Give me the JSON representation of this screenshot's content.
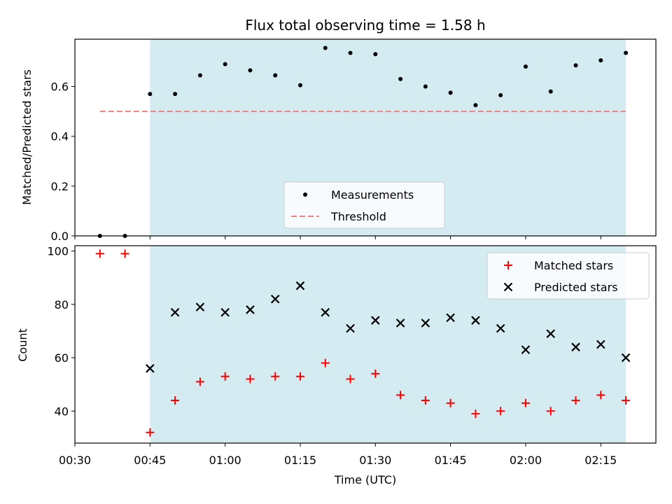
{
  "chart_data": {
    "type": "scatter",
    "title": "Flux total observing time = 1.58 h",
    "xlabel": "Time (UTC)",
    "x_ticks": [
      "00:30",
      "00:45",
      "01:00",
      "01:15",
      "01:30",
      "01:45",
      "02:00",
      "02:15"
    ],
    "x_tick_minutes": [
      30,
      45,
      60,
      75,
      90,
      105,
      120,
      135
    ],
    "xlim_minutes": [
      30,
      146
    ],
    "shaded_span_minutes": [
      45,
      140
    ],
    "shade_color": "#add8e6",
    "panels": [
      {
        "id": "ratio",
        "ylabel": "Matched/Predicted stars",
        "ylim": [
          0,
          0.79
        ],
        "y_ticks": [
          "0.0",
          "0.2",
          "0.4",
          "0.6"
        ],
        "y_tick_values": [
          0,
          0.2,
          0.4,
          0.6
        ],
        "series": [
          {
            "name": "Measurements",
            "marker": "dot",
            "color": "#000000",
            "x": [
              35,
              40,
              45,
              50,
              55,
              60,
              65,
              70,
              75,
              80,
              85,
              90,
              95,
              100,
              105,
              110,
              115,
              120,
              125,
              130,
              135,
              140
            ],
            "y": [
              0.0,
              0.0,
              0.57,
              0.57,
              0.645,
              0.69,
              0.665,
              0.645,
              0.605,
              0.755,
              0.735,
              0.73,
              0.63,
              0.6,
              0.575,
              0.525,
              0.565,
              0.68,
              0.58,
              0.685,
              0.705,
              0.735
            ]
          },
          {
            "name": "Threshold",
            "marker": "dashed-line",
            "color": "#f08080",
            "x": [
              35,
              140
            ],
            "y": [
              0.5,
              0.5
            ]
          }
        ],
        "legend": {
          "position": "lower-center",
          "entries": [
            "Measurements",
            "Threshold"
          ]
        }
      },
      {
        "id": "count",
        "ylabel": "Count",
        "ylim": [
          28,
          102
        ],
        "y_ticks": [
          "40",
          "60",
          "80",
          "100"
        ],
        "y_tick_values": [
          40,
          60,
          80,
          100
        ],
        "series": [
          {
            "name": "Matched stars",
            "marker": "plus",
            "color": "#ff0000",
            "x": [
              35,
              40,
              45,
              50,
              55,
              60,
              65,
              70,
              75,
              80,
              85,
              90,
              95,
              100,
              105,
              110,
              115,
              120,
              125,
              130,
              135,
              140
            ],
            "y": [
              99,
              99,
              32,
              44,
              51,
              53,
              52,
              53,
              53,
              58,
              52,
              54,
              46,
              44,
              43,
              39,
              40,
              43,
              40,
              44,
              46,
              44
            ]
          },
          {
            "name": "Predicted stars",
            "marker": "x",
            "color": "#000000",
            "x": [
              45,
              50,
              55,
              60,
              65,
              70,
              75,
              80,
              85,
              90,
              95,
              100,
              105,
              110,
              115,
              120,
              125,
              130,
              135,
              140
            ],
            "y": [
              56,
              77,
              79,
              77,
              78,
              82,
              87,
              77,
              71,
              74,
              73,
              73,
              75,
              74,
              71,
              63,
              69,
              64,
              65,
              60
            ]
          }
        ],
        "legend": {
          "position": "upper-right",
          "entries": [
            "Matched stars",
            "Predicted stars"
          ]
        }
      }
    ]
  }
}
